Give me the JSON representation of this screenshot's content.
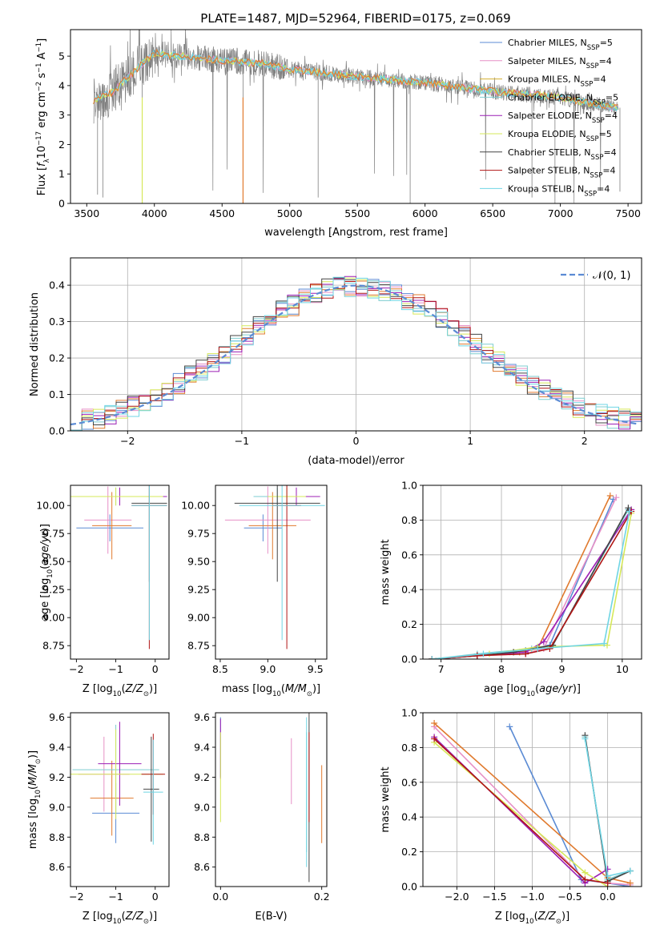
{
  "title": "PLATE=1487, MJD=52964, FIBERID=0175, z=0.069",
  "series_names": [
    "Chabrier MILES, N_SSP=5",
    "Salpeter MILES, N_SSP=4",
    "Kroupa MILES, N_SSP=4",
    "Chabrier ELODIE, N_SSP=5",
    "Salpeter ELODIE, N_SSP=4",
    "Kroupa ELODIE, N_SSP=5",
    "Chabrier STELIB, N_SSP=4",
    "Salpeter STELIB, N_SSP=4",
    "Kroupa STELIB, N_SSP=4"
  ],
  "series_colors": [
    "#5b8bd4",
    "#e690c6",
    "#d4b030",
    "#7ecdd0",
    "#9c1fb5",
    "#d6e85a",
    "#444444",
    "#b01515",
    "#6fd5e4"
  ],
  "chart_data": [
    {
      "id": "spectrum",
      "type": "line",
      "xlabel": "wavelength [Angstrom, rest frame]",
      "ylabel": "Flux [f_λ 10^-17 erg cm^-2 s^-1 A^-1]",
      "xlim": [
        3380,
        7600
      ],
      "ylim": [
        0,
        5.9
      ],
      "xticks": [
        3500,
        4000,
        4500,
        5000,
        5500,
        6000,
        6500,
        7000,
        7500
      ],
      "yticks": [
        0,
        1,
        2,
        3,
        4,
        5
      ],
      "continuum": [
        [
          3550,
          3.5
        ],
        [
          3700,
          3.8
        ],
        [
          3850,
          4.5
        ],
        [
          4000,
          5.1
        ],
        [
          4200,
          5.0
        ],
        [
          4500,
          4.85
        ],
        [
          4800,
          4.75
        ],
        [
          5000,
          4.55
        ],
        [
          5500,
          4.3
        ],
        [
          6000,
          4.1
        ],
        [
          6500,
          3.8
        ],
        [
          7000,
          3.6
        ],
        [
          7400,
          3.25
        ]
      ],
      "legend": "upper-right"
    },
    {
      "id": "residuals",
      "type": "histogram",
      "xlabel": "(data-model)/error",
      "ylabel": "Normed distribution",
      "xlim": [
        -2.5,
        2.5
      ],
      "ylim": [
        0,
        0.475
      ],
      "xticks": [
        -2,
        -1,
        0,
        1,
        2
      ],
      "yticks": [
        0,
        0.1,
        0.2,
        0.3,
        0.4
      ],
      "bin_width": 0.1,
      "reference": "N(0,1)",
      "reference_label": "𝒩(0, 1)",
      "grid": true,
      "legend": "upper-right"
    },
    {
      "id": "age-vs-Z",
      "type": "errorbar",
      "xlabel": "Z [log10(Z/Z☉)]",
      "ylabel": "age [log10(age/yr)]",
      "xlim": [
        -2.15,
        0.35
      ],
      "ylim": [
        8.63,
        10.18
      ],
      "xticks": [
        -2,
        -1,
        0
      ],
      "yticks": [
        8.75,
        9.0,
        9.25,
        9.5,
        9.75,
        10.0
      ],
      "points": [
        {
          "x": -1.15,
          "y": 9.8,
          "xerr": 0.85,
          "yerr": 0.12
        },
        {
          "x": -1.2,
          "y": 9.87,
          "xerr": 0.6,
          "yerr": 0.3
        },
        {
          "x": -1.1,
          "y": 9.82,
          "xerr": 0.5,
          "yerr": 0.3
        },
        {
          "x": -1.0,
          "y": 10.08,
          "xerr": 1.1,
          "yerr": 0.08
        },
        {
          "x": -0.9,
          "y": 10.08,
          "xerr": 1.2,
          "yerr": 0.08
        },
        {
          "x": -1.0,
          "y": 10.08,
          "xerr": 1.2,
          "yerr": 0.08
        },
        {
          "x": -0.15,
          "y": 10.02,
          "xerr": 0.45,
          "yerr": 0.7
        },
        {
          "x": -0.15,
          "y": 10.0,
          "xerr": 0.45,
          "yerr": 1.28
        },
        {
          "x": -0.15,
          "y": 10.0,
          "xerr": 0.45,
          "yerr": 1.2
        }
      ]
    },
    {
      "id": "age-vs-mass",
      "type": "errorbar",
      "xlabel": "mass [log10(M/M☉)]",
      "ylabel": "",
      "xlim": [
        8.45,
        9.62
      ],
      "ylim": [
        8.63,
        10.18
      ],
      "xticks": [
        8.5,
        9.0,
        9.5
      ],
      "yticks": [
        8.75,
        9.0,
        9.25,
        9.5,
        9.75,
        10.0
      ],
      "points": [
        {
          "x": 8.95,
          "y": 9.8,
          "xerr": 0.2,
          "yerr": 0.12
        },
        {
          "x": 9.0,
          "y": 9.87,
          "xerr": 0.45,
          "yerr": 0.3
        },
        {
          "x": 9.05,
          "y": 9.82,
          "xerr": 0.25,
          "yerr": 0.3
        },
        {
          "x": 9.1,
          "y": 10.08,
          "xerr": 0.25,
          "yerr": 0.08
        },
        {
          "x": 9.3,
          "y": 10.08,
          "xerr": 0.25,
          "yerr": 0.08
        },
        {
          "x": 9.2,
          "y": 10.08,
          "xerr": 0.2,
          "yerr": 0.08
        },
        {
          "x": 9.1,
          "y": 10.02,
          "xerr": 0.45,
          "yerr": 0.7
        },
        {
          "x": 9.2,
          "y": 10.0,
          "xerr": 0.15,
          "yerr": 1.28
        },
        {
          "x": 9.15,
          "y": 10.0,
          "xerr": 0.45,
          "yerr": 1.2
        }
      ]
    },
    {
      "id": "mass-weight-vs-age",
      "type": "line",
      "xlabel": "age [log10(age/yr)]",
      "ylabel": "mass weight",
      "xlim": [
        6.7,
        10.32
      ],
      "ylim": [
        0,
        1.0
      ],
      "xticks": [
        7,
        8,
        9,
        10
      ],
      "yticks": [
        0,
        0.2,
        0.4,
        0.6,
        0.8,
        1.0
      ],
      "grid": true,
      "series": [
        {
          "points": [
            [
              6.85,
              0
            ],
            [
              7.6,
              0.02
            ],
            [
              8.4,
              0.05
            ],
            [
              8.8,
              0.08
            ],
            [
              9.85,
              0.92
            ]
          ]
        },
        {
          "points": [
            [
              6.85,
              0
            ],
            [
              7.6,
              0.02
            ],
            [
              8.4,
              0.03
            ],
            [
              8.7,
              0.06
            ],
            [
              9.9,
              0.93
            ]
          ]
        },
        {
          "points": [
            [
              6.85,
              0
            ],
            [
              7.6,
              0.02
            ],
            [
              8.3,
              0.04
            ],
            [
              8.6,
              0.06
            ],
            [
              9.8,
              0.94
            ]
          ]
        },
        {
          "points": [
            [
              6.85,
              0
            ],
            [
              7.6,
              0.03
            ],
            [
              8.5,
              0.06
            ],
            [
              8.85,
              0.08
            ],
            [
              10.1,
              0.86
            ]
          ]
        },
        {
          "points": [
            [
              6.85,
              0
            ],
            [
              7.6,
              0.02
            ],
            [
              8.4,
              0.04
            ],
            [
              8.7,
              0.1
            ],
            [
              10.15,
              0.86
            ]
          ]
        },
        {
          "points": [
            [
              6.85,
              0
            ],
            [
              7.8,
              0.03
            ],
            [
              8.6,
              0.07
            ],
            [
              9.75,
              0.08
            ],
            [
              10.15,
              0.84
            ]
          ]
        },
        {
          "points": [
            [
              6.85,
              0
            ],
            [
              7.6,
              0.02
            ],
            [
              8.2,
              0.04
            ],
            [
              8.85,
              0.08
            ],
            [
              10.1,
              0.87
            ]
          ]
        },
        {
          "points": [
            [
              6.85,
              0
            ],
            [
              7.6,
              0.02
            ],
            [
              8.4,
              0.03
            ],
            [
              8.8,
              0.06
            ],
            [
              10.15,
              0.85
            ]
          ]
        },
        {
          "points": [
            [
              6.85,
              0
            ],
            [
              7.7,
              0.03
            ],
            [
              8.6,
              0.06
            ],
            [
              9.7,
              0.09
            ],
            [
              10.12,
              0.85
            ]
          ]
        }
      ]
    },
    {
      "id": "mass-vs-Z",
      "type": "errorbar",
      "xlabel": "Z [log10(Z/Z☉)]",
      "ylabel": "mass [log10(M/M☉)]",
      "xlim": [
        -2.15,
        0.35
      ],
      "ylim": [
        8.47,
        9.63
      ],
      "xticks": [
        -2,
        -1,
        0
      ],
      "yticks": [
        8.6,
        8.8,
        9.0,
        9.2,
        9.4,
        9.6
      ],
      "points": [
        {
          "x": -1.0,
          "y": 8.96,
          "xerr": 0.6,
          "yerr": 0.2
        },
        {
          "x": -1.3,
          "y": 9.22,
          "xerr": 0.65,
          "yerr": 0.25
        },
        {
          "x": -1.1,
          "y": 9.06,
          "xerr": 0.55,
          "yerr": 0.25
        },
        {
          "x": -1.0,
          "y": 9.25,
          "xerr": 1.1,
          "yerr": 0.3
        },
        {
          "x": -0.9,
          "y": 9.29,
          "xerr": 0.55,
          "yerr": 0.28
        },
        {
          "x": -1.0,
          "y": 9.22,
          "xerr": 1.2,
          "yerr": 0.3
        },
        {
          "x": -0.1,
          "y": 9.12,
          "xerr": 0.2,
          "yerr": 0.35
        },
        {
          "x": -0.05,
          "y": 9.22,
          "xerr": 0.3,
          "yerr": 0.27
        },
        {
          "x": -0.05,
          "y": 9.1,
          "xerr": 0.25,
          "yerr": 0.35
        }
      ]
    },
    {
      "id": "mass-vs-ebv",
      "type": "errorbar",
      "xlabel": "E(B-V)",
      "ylabel": "",
      "xlim": [
        -0.01,
        0.21
      ],
      "ylim": [
        8.47,
        9.63
      ],
      "xticks": [
        0.0,
        0.2
      ],
      "yticks": [
        8.6,
        8.8,
        9.0,
        9.2,
        9.4,
        9.6
      ],
      "points": [
        {
          "x": 0.0,
          "y": 9.4,
          "xerr": 0,
          "yerr": 0.2
        },
        {
          "x": 0.14,
          "y": 9.24,
          "xerr": 0,
          "yerr": 0.22
        },
        {
          "x": 0.2,
          "y": 9.02,
          "xerr": 0,
          "yerr": 0.26
        },
        {
          "x": 0.17,
          "y": 9.1,
          "xerr": 0,
          "yerr": 0.4
        },
        {
          "x": 0.0,
          "y": 9.39,
          "xerr": 0,
          "yerr": 0.2
        },
        {
          "x": 0.0,
          "y": 9.2,
          "xerr": 0,
          "yerr": 0.3
        },
        {
          "x": 0.175,
          "y": 9.1,
          "xerr": 0,
          "yerr": 0.6
        },
        {
          "x": 0.175,
          "y": 9.2,
          "xerr": 0,
          "yerr": 0.3
        },
        {
          "x": 0.17,
          "y": 9.1,
          "xerr": 0,
          "yerr": 0.5
        }
      ]
    },
    {
      "id": "mass-weight-vs-Z",
      "type": "line",
      "xlabel": "Z [log10(Z/Z☉)]",
      "ylabel": "mass weight",
      "xlim": [
        -2.45,
        0.45
      ],
      "ylim": [
        0,
        1.0
      ],
      "xticks": [
        -2.0,
        -1.5,
        -1.0,
        -0.5,
        0.0
      ],
      "yticks": [
        0,
        0.2,
        0.4,
        0.6,
        0.8,
        1.0
      ],
      "grid": true,
      "series": [
        {
          "points": [
            [
              -1.3,
              0.92
            ],
            [
              -0.35,
              0.04
            ],
            [
              0.0,
              0.02
            ],
            [
              0.3,
              0.0
            ]
          ]
        },
        {
          "points": [
            [
              -2.3,
              0.92
            ],
            [
              -0.3,
              0.04
            ],
            [
              0.0,
              0.02
            ],
            [
              0.3,
              0.01
            ]
          ]
        },
        {
          "points": [
            [
              -2.3,
              0.94
            ],
            [
              0.0,
              0.05
            ],
            [
              0.3,
              0.02
            ]
          ]
        },
        {
          "points": [
            [
              -0.3,
              0.86
            ],
            [
              0.0,
              0.04
            ],
            [
              0.3,
              0.09
            ]
          ]
        },
        {
          "points": [
            [
              -2.3,
              0.86
            ],
            [
              -0.3,
              0.02
            ],
            [
              0.0,
              0.1
            ]
          ]
        },
        {
          "points": [
            [
              -2.3,
              0.83
            ],
            [
              -0.3,
              0.08
            ],
            [
              0.0,
              0.0
            ]
          ]
        },
        {
          "points": [
            [
              -0.3,
              0.87
            ],
            [
              0.0,
              0.03
            ],
            [
              0.3,
              0.09
            ]
          ]
        },
        {
          "points": [
            [
              -2.3,
              0.85
            ],
            [
              -0.3,
              0.04
            ],
            [
              0.0,
              0.02
            ]
          ]
        },
        {
          "points": [
            [
              -0.3,
              0.85
            ],
            [
              0.0,
              0.06
            ],
            [
              0.3,
              0.09
            ]
          ]
        }
      ]
    }
  ]
}
